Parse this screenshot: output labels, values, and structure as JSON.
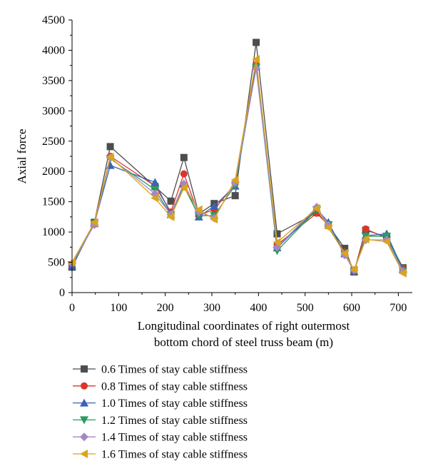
{
  "chart_data": {
    "type": "line",
    "xlabel_lines": [
      "Longitudinal coordinates of right outermost",
      "bottom chord of steel truss beam (m)"
    ],
    "ylabel": "Axial force",
    "xlim": [
      0,
      730
    ],
    "ylim": [
      0,
      4500
    ],
    "xticks": [
      0,
      100,
      200,
      300,
      400,
      500,
      600,
      700
    ],
    "yticks": [
      0,
      500,
      1000,
      1500,
      2000,
      2500,
      3000,
      3500,
      4000,
      4500
    ],
    "legend_position": "bottom-left",
    "x": [
      0,
      48,
      82,
      178,
      212,
      240,
      272,
      305,
      350,
      395,
      440,
      525,
      550,
      585,
      605,
      630,
      675,
      710
    ],
    "series": [
      {
        "name": "0.6 Times of stay cable stiffness",
        "color": "#4d4d4d",
        "marker": "square",
        "values": [
          420,
          1160,
          2410,
          1750,
          1510,
          2230,
          1300,
          1470,
          1600,
          4130,
          970,
          1320,
          1110,
          730,
          340,
          1030,
          920,
          410
        ]
      },
      {
        "name": "0.8 Times of stay cable stiffness",
        "color": "#d9362b",
        "marker": "circle",
        "values": [
          450,
          1150,
          2250,
          1760,
          1330,
          1960,
          1280,
          1370,
          1800,
          3760,
          790,
          1310,
          1110,
          670,
          340,
          1050,
          900,
          400
        ]
      },
      {
        "name": "1.0 Times of stay cable stiffness",
        "color": "#3b62b5",
        "marker": "triangle-up",
        "values": [
          440,
          1140,
          2100,
          1820,
          1290,
          1800,
          1250,
          1430,
          1760,
          3740,
          740,
          1380,
          1160,
          640,
          350,
          940,
          970,
          380
        ]
      },
      {
        "name": "1.2 Times of stay cable stiffness",
        "color": "#2a9d5b",
        "marker": "triangle-down",
        "values": [
          460,
          1140,
          2210,
          1700,
          1280,
          1750,
          1270,
          1270,
          1770,
          3720,
          690,
          1370,
          1120,
          640,
          360,
          930,
          930,
          360
        ]
      },
      {
        "name": "1.4 Times of stay cable stiffness",
        "color": "#a585c8",
        "marker": "diamond",
        "values": [
          480,
          1120,
          2230,
          1630,
          1290,
          1790,
          1330,
          1230,
          1820,
          3700,
          750,
          1410,
          1110,
          620,
          370,
          870,
          870,
          350
        ]
      },
      {
        "name": "1.6 Times of stay cable stiffness",
        "color": "#dba41a",
        "marker": "triangle-left",
        "values": [
          500,
          1160,
          2240,
          1560,
          1250,
          1730,
          1370,
          1210,
          1860,
          3850,
          830,
          1390,
          1070,
          650,
          380,
          880,
          840,
          320
        ]
      }
    ]
  }
}
